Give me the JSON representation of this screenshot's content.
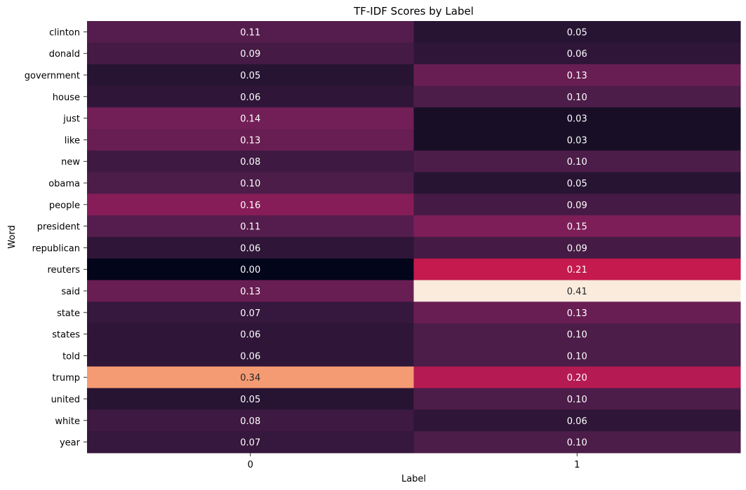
{
  "chart_data": {
    "type": "heatmap",
    "title": "TF-IDF Scores by Label",
    "xlabel": "Label",
    "ylabel": "Word",
    "x_categories": [
      "0",
      "1"
    ],
    "y_categories": [
      "clinton",
      "donald",
      "government",
      "house",
      "just",
      "like",
      "new",
      "obama",
      "people",
      "president",
      "republican",
      "reuters",
      "said",
      "state",
      "states",
      "told",
      "trump",
      "united",
      "white",
      "year"
    ],
    "values": [
      [
        0.11,
        0.05
      ],
      [
        0.09,
        0.06
      ],
      [
        0.05,
        0.13
      ],
      [
        0.06,
        0.1
      ],
      [
        0.14,
        0.03
      ],
      [
        0.13,
        0.03
      ],
      [
        0.08,
        0.1
      ],
      [
        0.1,
        0.05
      ],
      [
        0.16,
        0.09
      ],
      [
        0.11,
        0.15
      ],
      [
        0.06,
        0.09
      ],
      [
        0.0,
        0.21
      ],
      [
        0.13,
        0.41
      ],
      [
        0.07,
        0.13
      ],
      [
        0.06,
        0.1
      ],
      [
        0.06,
        0.1
      ],
      [
        0.34,
        0.2
      ],
      [
        0.05,
        0.1
      ],
      [
        0.08,
        0.06
      ],
      [
        0.07,
        0.1
      ]
    ],
    "value_range": [
      0,
      0.41
    ],
    "colormap": "rocket",
    "annotation_format": "0.00",
    "colorbar": false
  }
}
